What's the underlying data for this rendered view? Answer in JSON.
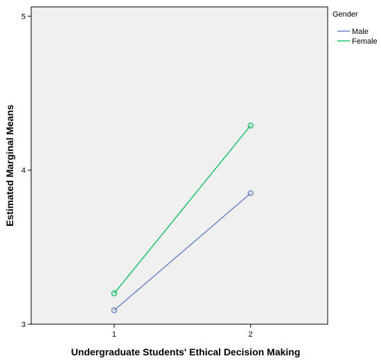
{
  "chart_data": {
    "type": "line",
    "xlabel": "Undergraduate Students' Ethical Decision Making",
    "ylabel": "Estimated Marginal Means",
    "categories": [
      "1",
      "2"
    ],
    "x_ticks": [
      "1",
      "2"
    ],
    "y_ticks": [
      3,
      4,
      5
    ],
    "ylim": [
      3,
      5.06
    ],
    "legend_title": "Gender",
    "legend_position": "top-right, outside plot",
    "grid": false,
    "plot_background": "#f0f0f0",
    "series": [
      {
        "name": "Male",
        "values": [
          3.09,
          3.85
        ],
        "color": "#6e87c6"
      },
      {
        "name": "Female",
        "values": [
          3.2,
          4.29
        ],
        "color": "#1fc26a"
      }
    ]
  }
}
